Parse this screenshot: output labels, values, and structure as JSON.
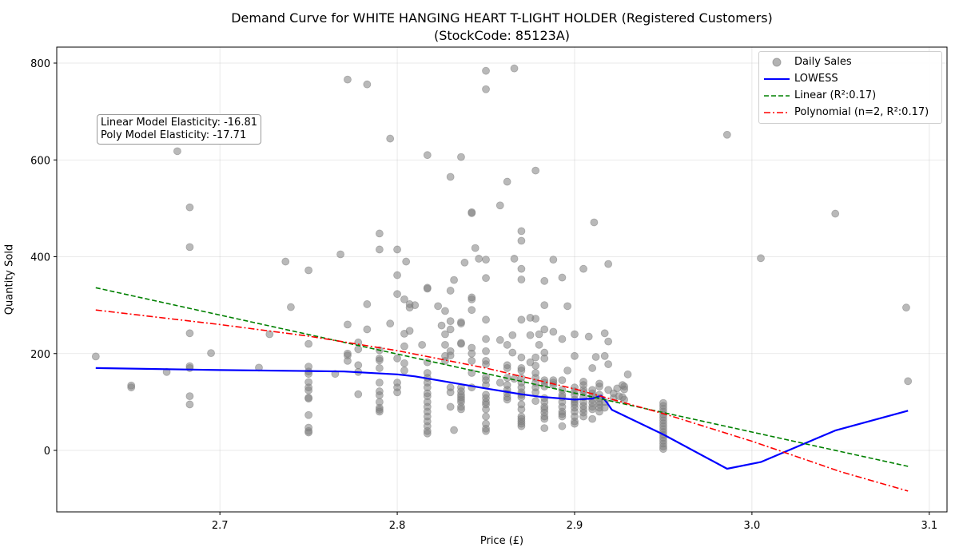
{
  "chart_data": {
    "type": "scatter",
    "title": "Demand Curve for WHITE HANGING HEART T-LIGHT HOLDER (Registered Customers)",
    "subtitle": "(StockCode: 85123A)",
    "xlabel": "Price (£)",
    "ylabel": "Quantity Sold",
    "xlim": [
      2.608,
      3.11
    ],
    "ylim": [
      -127,
      833
    ],
    "xticks": [
      2.7,
      2.8,
      2.9,
      3.0,
      3.1
    ],
    "yticks": [
      0,
      200,
      400,
      600,
      800
    ],
    "xtick_labels": [
      "2.7",
      "2.8",
      "2.9",
      "3.0",
      "3.1"
    ],
    "ytick_labels": [
      "0",
      "200",
      "400",
      "600",
      "800"
    ],
    "grid": true,
    "legend_position": "top-right",
    "colors": {
      "points": "#808080",
      "lowess": "#0000ff",
      "linear": "#008000",
      "poly": "#ff0000"
    },
    "legend": [
      {
        "label": "Daily Sales"
      },
      {
        "label": "LOWESS"
      },
      {
        "label": "Linear (R²:0.17)"
      },
      {
        "label": "Polynomial (n=2, R²:0.17)"
      }
    ],
    "annotation": {
      "line1": "Linear Model Elasticity: -16.81",
      "line2": "Poly Model Elasticity: -17.71"
    },
    "scatter_points": [
      [
        2.63,
        194
      ],
      [
        2.65,
        134
      ],
      [
        2.65,
        130
      ],
      [
        2.67,
        162
      ],
      [
        2.676,
        618
      ],
      [
        2.683,
        502
      ],
      [
        2.683,
        420
      ],
      [
        2.683,
        242
      ],
      [
        2.683,
        174
      ],
      [
        2.683,
        170
      ],
      [
        2.683,
        112
      ],
      [
        2.683,
        95
      ],
      [
        2.695,
        201
      ],
      [
        2.722,
        171
      ],
      [
        2.728,
        240
      ],
      [
        2.737,
        390
      ],
      [
        2.74,
        296
      ],
      [
        2.75,
        372
      ],
      [
        2.75,
        220
      ],
      [
        2.75,
        173
      ],
      [
        2.75,
        163
      ],
      [
        2.75,
        158
      ],
      [
        2.75,
        141
      ],
      [
        2.75,
        130
      ],
      [
        2.75,
        124
      ],
      [
        2.75,
        109
      ],
      [
        2.75,
        107
      ],
      [
        2.75,
        73
      ],
      [
        2.75,
        47
      ],
      [
        2.75,
        40
      ],
      [
        2.75,
        37
      ],
      [
        2.765,
        158
      ],
      [
        2.768,
        405
      ],
      [
        2.772,
        766
      ],
      [
        2.772,
        260
      ],
      [
        2.772,
        200
      ],
      [
        2.772,
        196
      ],
      [
        2.772,
        185
      ],
      [
        2.778,
        223
      ],
      [
        2.778,
        209
      ],
      [
        2.778,
        176
      ],
      [
        2.778,
        162
      ],
      [
        2.778,
        116
      ],
      [
        2.783,
        756
      ],
      [
        2.783,
        302
      ],
      [
        2.783,
        250
      ],
      [
        2.79,
        448
      ],
      [
        2.79,
        415
      ],
      [
        2.79,
        207
      ],
      [
        2.79,
        190
      ],
      [
        2.79,
        186
      ],
      [
        2.79,
        170
      ],
      [
        2.79,
        140
      ],
      [
        2.79,
        122
      ],
      [
        2.79,
        114
      ],
      [
        2.79,
        100
      ],
      [
        2.79,
        88
      ],
      [
        2.79,
        84
      ],
      [
        2.79,
        80
      ],
      [
        2.796,
        644
      ],
      [
        2.796,
        262
      ],
      [
        2.8,
        415
      ],
      [
        2.8,
        362
      ],
      [
        2.8,
        323
      ],
      [
        2.8,
        190
      ],
      [
        2.8,
        140
      ],
      [
        2.8,
        130
      ],
      [
        2.8,
        120
      ],
      [
        2.804,
        312
      ],
      [
        2.804,
        241
      ],
      [
        2.804,
        215
      ],
      [
        2.804,
        180
      ],
      [
        2.804,
        165
      ],
      [
        2.805,
        390
      ],
      [
        2.807,
        302
      ],
      [
        2.807,
        295
      ],
      [
        2.807,
        247
      ],
      [
        2.81,
        300
      ],
      [
        2.814,
        218
      ],
      [
        2.817,
        610
      ],
      [
        2.817,
        336
      ],
      [
        2.817,
        334
      ],
      [
        2.817,
        182
      ],
      [
        2.817,
        160
      ],
      [
        2.817,
        150
      ],
      [
        2.817,
        140
      ],
      [
        2.817,
        130
      ],
      [
        2.817,
        118
      ],
      [
        2.817,
        112
      ],
      [
        2.817,
        100
      ],
      [
        2.817,
        90
      ],
      [
        2.817,
        80
      ],
      [
        2.817,
        70
      ],
      [
        2.817,
        60
      ],
      [
        2.817,
        50
      ],
      [
        2.817,
        40
      ],
      [
        2.817,
        35
      ],
      [
        2.823,
        298
      ],
      [
        2.825,
        258
      ],
      [
        2.827,
        288
      ],
      [
        2.827,
        240
      ],
      [
        2.827,
        218
      ],
      [
        2.827,
        195
      ],
      [
        2.827,
        185
      ],
      [
        2.83,
        565
      ],
      [
        2.83,
        330
      ],
      [
        2.83,
        267
      ],
      [
        2.83,
        250
      ],
      [
        2.83,
        205
      ],
      [
        2.83,
        196
      ],
      [
        2.83,
        130
      ],
      [
        2.83,
        120
      ],
      [
        2.83,
        90
      ],
      [
        2.832,
        42
      ],
      [
        2.832,
        352
      ],
      [
        2.836,
        606
      ],
      [
        2.836,
        265
      ],
      [
        2.836,
        262
      ],
      [
        2.836,
        222
      ],
      [
        2.836,
        220
      ],
      [
        2.836,
        130
      ],
      [
        2.836,
        122
      ],
      [
        2.836,
        115
      ],
      [
        2.836,
        110
      ],
      [
        2.836,
        105
      ],
      [
        2.836,
        100
      ],
      [
        2.836,
        90
      ],
      [
        2.836,
        85
      ],
      [
        2.838,
        388
      ],
      [
        2.842,
        492
      ],
      [
        2.842,
        490
      ],
      [
        2.842,
        316
      ],
      [
        2.842,
        312
      ],
      [
        2.842,
        290
      ],
      [
        2.842,
        212
      ],
      [
        2.842,
        200
      ],
      [
        2.842,
        185
      ],
      [
        2.842,
        160
      ],
      [
        2.842,
        130
      ],
      [
        2.844,
        418
      ],
      [
        2.846,
        396
      ],
      [
        2.85,
        784
      ],
      [
        2.85,
        746
      ],
      [
        2.85,
        394
      ],
      [
        2.85,
        356
      ],
      [
        2.85,
        270
      ],
      [
        2.85,
        230
      ],
      [
        2.85,
        205
      ],
      [
        2.85,
        185
      ],
      [
        2.85,
        178
      ],
      [
        2.85,
        152
      ],
      [
        2.85,
        145
      ],
      [
        2.85,
        135
      ],
      [
        2.85,
        115
      ],
      [
        2.85,
        108
      ],
      [
        2.85,
        100
      ],
      [
        2.85,
        95
      ],
      [
        2.85,
        85
      ],
      [
        2.85,
        70
      ],
      [
        2.85,
        55
      ],
      [
        2.85,
        45
      ],
      [
        2.85,
        40
      ],
      [
        2.858,
        506
      ],
      [
        2.858,
        228
      ],
      [
        2.858,
        140
      ],
      [
        2.862,
        555
      ],
      [
        2.862,
        218
      ],
      [
        2.862,
        176
      ],
      [
        2.862,
        170
      ],
      [
        2.862,
        150
      ],
      [
        2.862,
        135
      ],
      [
        2.862,
        125
      ],
      [
        2.862,
        118
      ],
      [
        2.862,
        110
      ],
      [
        2.862,
        105
      ],
      [
        2.865,
        238
      ],
      [
        2.865,
        202
      ],
      [
        2.866,
        789
      ],
      [
        2.866,
        396
      ],
      [
        2.866,
        148
      ],
      [
        2.87,
        453
      ],
      [
        2.87,
        433
      ],
      [
        2.87,
        375
      ],
      [
        2.87,
        353
      ],
      [
        2.87,
        270
      ],
      [
        2.87,
        192
      ],
      [
        2.87,
        170
      ],
      [
        2.87,
        165
      ],
      [
        2.87,
        150
      ],
      [
        2.87,
        140
      ],
      [
        2.87,
        130
      ],
      [
        2.87,
        120
      ],
      [
        2.87,
        115
      ],
      [
        2.87,
        110
      ],
      [
        2.87,
        95
      ],
      [
        2.87,
        85
      ],
      [
        2.87,
        70
      ],
      [
        2.87,
        65
      ],
      [
        2.87,
        60
      ],
      [
        2.87,
        55
      ],
      [
        2.87,
        50
      ],
      [
        2.875,
        274
      ],
      [
        2.875,
        238
      ],
      [
        2.875,
        182
      ],
      [
        2.878,
        578
      ],
      [
        2.878,
        272
      ],
      [
        2.878,
        192
      ],
      [
        2.878,
        175
      ],
      [
        2.878,
        160
      ],
      [
        2.878,
        150
      ],
      [
        2.878,
        140
      ],
      [
        2.878,
        130
      ],
      [
        2.878,
        120
      ],
      [
        2.878,
        102
      ],
      [
        2.88,
        240
      ],
      [
        2.88,
        218
      ],
      [
        2.883,
        350
      ],
      [
        2.883,
        300
      ],
      [
        2.883,
        250
      ],
      [
        2.883,
        202
      ],
      [
        2.883,
        190
      ],
      [
        2.883,
        145
      ],
      [
        2.883,
        140
      ],
      [
        2.883,
        132
      ],
      [
        2.883,
        108
      ],
      [
        2.883,
        100
      ],
      [
        2.883,
        90
      ],
      [
        2.883,
        85
      ],
      [
        2.883,
        78
      ],
      [
        2.883,
        70
      ],
      [
        2.883,
        65
      ],
      [
        2.883,
        46
      ],
      [
        2.888,
        394
      ],
      [
        2.888,
        245
      ],
      [
        2.888,
        145
      ],
      [
        2.888,
        140
      ],
      [
        2.888,
        135
      ],
      [
        2.893,
        357
      ],
      [
        2.893,
        230
      ],
      [
        2.893,
        145
      ],
      [
        2.893,
        125
      ],
      [
        2.893,
        115
      ],
      [
        2.893,
        110
      ],
      [
        2.893,
        100
      ],
      [
        2.893,
        90
      ],
      [
        2.893,
        80
      ],
      [
        2.893,
        75
      ],
      [
        2.893,
        70
      ],
      [
        2.893,
        50
      ],
      [
        2.896,
        298
      ],
      [
        2.896,
        165
      ],
      [
        2.9,
        240
      ],
      [
        2.9,
        195
      ],
      [
        2.9,
        130
      ],
      [
        2.9,
        122
      ],
      [
        2.9,
        115
      ],
      [
        2.9,
        105
      ],
      [
        2.9,
        100
      ],
      [
        2.9,
        95
      ],
      [
        2.9,
        88
      ],
      [
        2.9,
        80
      ],
      [
        2.9,
        70
      ],
      [
        2.9,
        60
      ],
      [
        2.9,
        55
      ],
      [
        2.905,
        375
      ],
      [
        2.905,
        142
      ],
      [
        2.905,
        135
      ],
      [
        2.905,
        125
      ],
      [
        2.905,
        120
      ],
      [
        2.905,
        110
      ],
      [
        2.905,
        100
      ],
      [
        2.905,
        92
      ],
      [
        2.905,
        85
      ],
      [
        2.905,
        78
      ],
      [
        2.905,
        70
      ],
      [
        2.908,
        235
      ],
      [
        2.91,
        170
      ],
      [
        2.91,
        125
      ],
      [
        2.91,
        118
      ],
      [
        2.91,
        112
      ],
      [
        2.91,
        105
      ],
      [
        2.91,
        98
      ],
      [
        2.91,
        90
      ],
      [
        2.91,
        85
      ],
      [
        2.91,
        65
      ],
      [
        2.911,
        471
      ],
      [
        2.912,
        193
      ],
      [
        2.914,
        138
      ],
      [
        2.914,
        132
      ],
      [
        2.914,
        115
      ],
      [
        2.914,
        108
      ],
      [
        2.914,
        100
      ],
      [
        2.914,
        95
      ],
      [
        2.914,
        88
      ],
      [
        2.914,
        80
      ],
      [
        2.917,
        242
      ],
      [
        2.917,
        195
      ],
      [
        2.917,
        100
      ],
      [
        2.917,
        88
      ],
      [
        2.919,
        385
      ],
      [
        2.919,
        225
      ],
      [
        2.919,
        178
      ],
      [
        2.919,
        125
      ],
      [
        2.922,
        118
      ],
      [
        2.922,
        108
      ],
      [
        2.924,
        128
      ],
      [
        2.925,
        112
      ],
      [
        2.927,
        110
      ],
      [
        2.927,
        135
      ],
      [
        2.928,
        132
      ],
      [
        2.928,
        126
      ],
      [
        2.928,
        105
      ],
      [
        2.93,
        157
      ],
      [
        2.95,
        98
      ],
      [
        2.95,
        92
      ],
      [
        2.95,
        86
      ],
      [
        2.95,
        80
      ],
      [
        2.95,
        74
      ],
      [
        2.95,
        68
      ],
      [
        2.95,
        62
      ],
      [
        2.95,
        56
      ],
      [
        2.95,
        50
      ],
      [
        2.95,
        44
      ],
      [
        2.95,
        38
      ],
      [
        2.95,
        32
      ],
      [
        2.95,
        26
      ],
      [
        2.95,
        20
      ],
      [
        2.95,
        14
      ],
      [
        2.95,
        8
      ],
      [
        2.95,
        3
      ],
      [
        2.986,
        652
      ],
      [
        3.005,
        397
      ],
      [
        3.047,
        489
      ],
      [
        3.087,
        295
      ],
      [
        3.088,
        143
      ]
    ],
    "series": [
      {
        "name": "LOWESS",
        "style": "solid",
        "points": [
          [
            2.63,
            170
          ],
          [
            2.7,
            166
          ],
          [
            2.75,
            164
          ],
          [
            2.77,
            163
          ],
          [
            2.8,
            157
          ],
          [
            2.81,
            153
          ],
          [
            2.85,
            128
          ],
          [
            2.87,
            116
          ],
          [
            2.88,
            111
          ],
          [
            2.9,
            105
          ],
          [
            2.91,
            107
          ],
          [
            2.915,
            113
          ],
          [
            2.918,
            100
          ],
          [
            2.921,
            84
          ],
          [
            2.95,
            33
          ],
          [
            2.986,
            -38
          ],
          [
            3.005,
            -24
          ],
          [
            3.047,
            41
          ],
          [
            3.088,
            82
          ]
        ]
      },
      {
        "name": "Linear (R²:0.17)",
        "style": "dashed",
        "points": [
          [
            2.63,
            336
          ],
          [
            3.088,
            -33
          ]
        ]
      },
      {
        "name": "Polynomial (n=2, R²:0.17)",
        "style": "dashdot",
        "points": [
          [
            2.63,
            290
          ],
          [
            2.7,
            260
          ],
          [
            2.75,
            236
          ],
          [
            2.8,
            206
          ],
          [
            2.85,
            170
          ],
          [
            2.9,
            127
          ],
          [
            2.95,
            76
          ],
          [
            3.0,
            19
          ],
          [
            3.05,
            -44
          ],
          [
            3.088,
            -84
          ]
        ]
      }
    ]
  }
}
